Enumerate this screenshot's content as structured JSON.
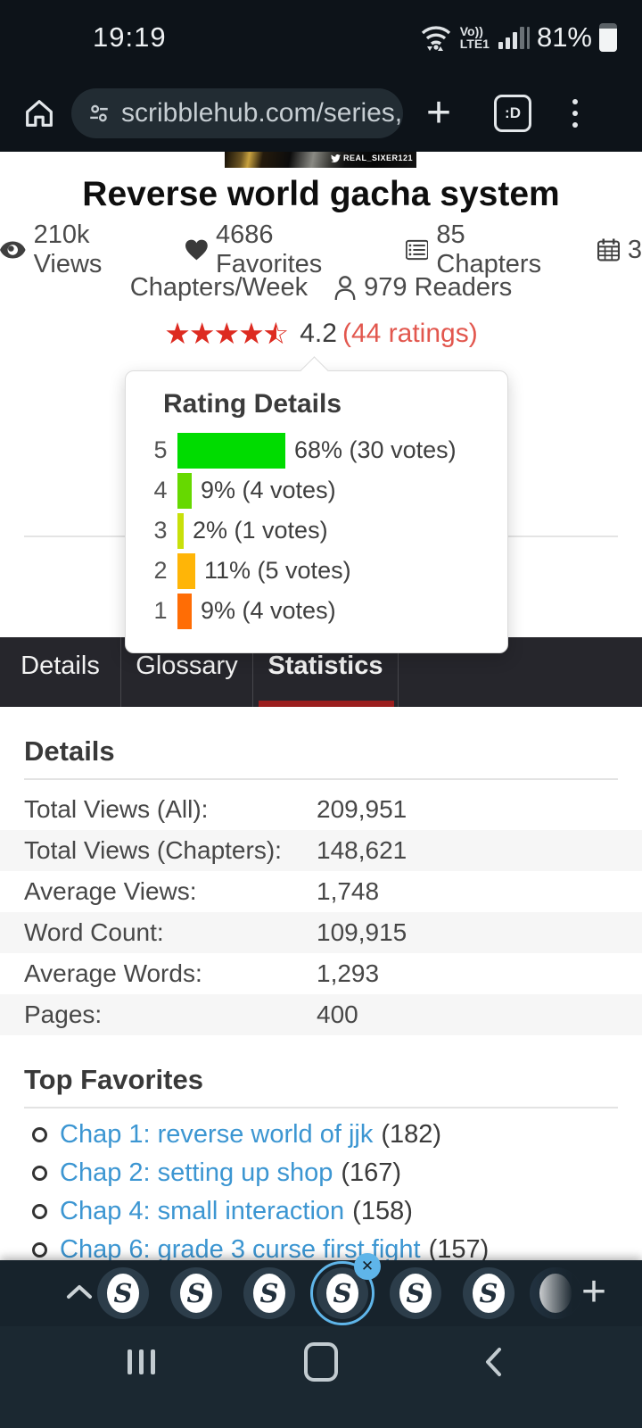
{
  "status_bar": {
    "time": "19:19",
    "volte_top": "Vo))",
    "volte_bottom": "LTE1",
    "battery_percent": "81%"
  },
  "browser_toolbar": {
    "url": "scribblehub.com/series,",
    "tab_count_label": ":D"
  },
  "page": {
    "banner": {
      "watermark": "REAL_SIXER121"
    },
    "title": "Reverse world gacha system",
    "stats": [
      {
        "icon": "eye-icon",
        "text": "210k Views"
      },
      {
        "icon": "heart-icon",
        "text": "4686 Favorites"
      },
      {
        "icon": "chapters-icon",
        "text": "85 Chapters"
      },
      {
        "icon": "calendar-icon",
        "text": "3"
      },
      {
        "icon": "none",
        "text": "Chapters/Week"
      },
      {
        "icon": "reader-icon",
        "text": "979 Readers"
      }
    ],
    "rating": {
      "score": "4.2",
      "ratings_label": "(44 ratings)",
      "stars": 4.5
    }
  },
  "rating_popup": {
    "title": "Rating Details",
    "chart_data": {
      "type": "bar",
      "categories": [
        "5",
        "4",
        "3",
        "2",
        "1"
      ],
      "values": [
        68,
        9,
        2,
        11,
        9
      ],
      "votes": [
        30,
        4,
        1,
        5,
        4
      ]
    },
    "rows": [
      {
        "star": "5",
        "percent": 68,
        "label": "68% (30 votes)",
        "color": "#00dc00"
      },
      {
        "star": "4",
        "percent": 9,
        "label": "9% (4 votes)",
        "color": "#66d900"
      },
      {
        "star": "3",
        "percent": 2,
        "label": "2% (1 votes)",
        "color": "#c8e00a"
      },
      {
        "star": "2",
        "percent": 11,
        "label": "11% (5 votes)",
        "color": "#ffb507"
      },
      {
        "star": "1",
        "percent": 9,
        "label": "9% (4 votes)",
        "color": "#ff6d05"
      }
    ]
  },
  "tabs": [
    {
      "label": "Details",
      "active": false
    },
    {
      "label": "Glossary",
      "active": false
    },
    {
      "label": "Statistics",
      "active": true
    }
  ],
  "details_section": {
    "heading": "Details",
    "rows": [
      {
        "label": "Total Views (All):",
        "value": "209,951"
      },
      {
        "label": "Total Views (Chapters):",
        "value": "148,621"
      },
      {
        "label": "Average Views:",
        "value": "1,748"
      },
      {
        "label": "Word Count:",
        "value": "109,915"
      },
      {
        "label": "Average Words:",
        "value": "1,293"
      },
      {
        "label": "Pages:",
        "value": "400"
      }
    ]
  },
  "favorites_section": {
    "heading": "Top Favorites",
    "items": [
      {
        "title": "Chap 1: reverse world of jjk",
        "count": "(182)"
      },
      {
        "title": "Chap 2: setting up shop",
        "count": "(167)"
      },
      {
        "title": "Chap 4: small interaction",
        "count": "(158)"
      },
      {
        "title": "Chap 6: grade 3 curse first fight",
        "count": "(157)"
      }
    ]
  },
  "tab_strip": {
    "logo_glyph": "S",
    "selected_index": 3,
    "close_glyph": "✕"
  }
}
